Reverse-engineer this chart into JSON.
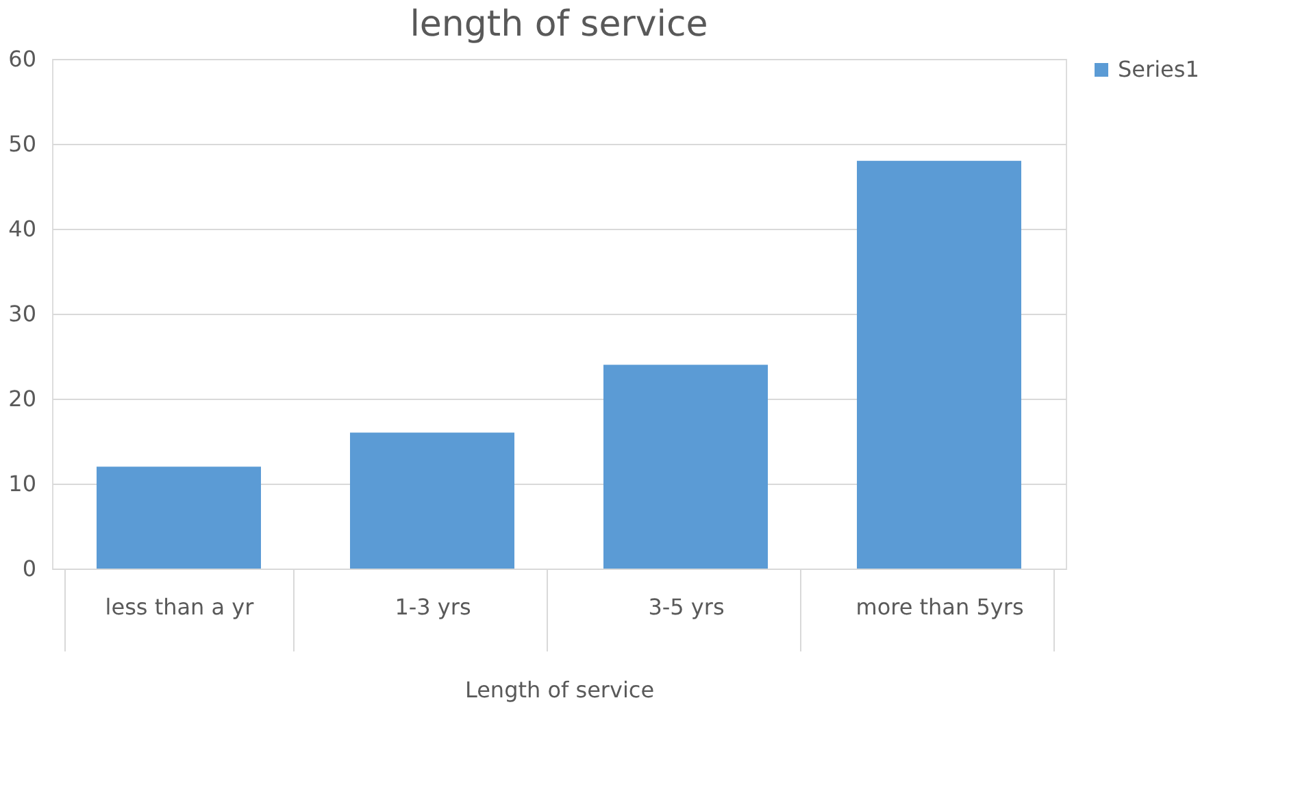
{
  "chart_data": {
    "type": "bar",
    "title": "length of service",
    "xlabel": "Length of service",
    "categories": [
      "less than a yr",
      "1-3 yrs",
      "3-5 yrs",
      "more than 5yrs"
    ],
    "series": [
      {
        "name": "Series1",
        "color": "#5b9bd5",
        "values": [
          12,
          16,
          24,
          48
        ]
      }
    ],
    "ylim": [
      0,
      60
    ],
    "yticks": [
      0,
      10,
      20,
      30,
      40,
      50,
      60
    ],
    "grid": "y",
    "legend": "right"
  }
}
